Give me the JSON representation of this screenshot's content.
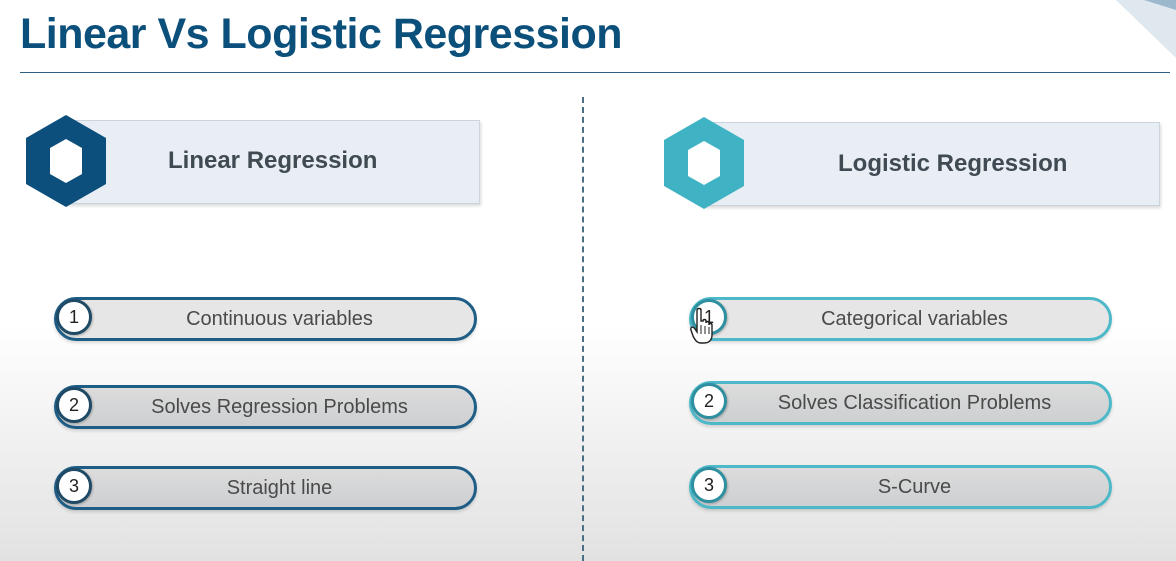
{
  "title": "Linear Vs Logistic Regression",
  "colors": {
    "title": "#0b4f7b",
    "linear_accent": "#0b4f7b",
    "logistic_accent": "#4cb8c8"
  },
  "linear": {
    "heading": "Linear Regression",
    "icon": "hexagon-icon",
    "items": [
      {
        "num": "1",
        "text": "Continuous variables"
      },
      {
        "num": "2",
        "text": "Solves Regression Problems"
      },
      {
        "num": "3",
        "text": "Straight line"
      }
    ]
  },
  "logistic": {
    "heading": "Logistic Regression",
    "icon": "hexagon-icon",
    "items": [
      {
        "num": "1",
        "text": "Categorical variables"
      },
      {
        "num": "2",
        "text": "Solves Classification Problems"
      },
      {
        "num": "3",
        "text": "S-Curve"
      }
    ]
  }
}
